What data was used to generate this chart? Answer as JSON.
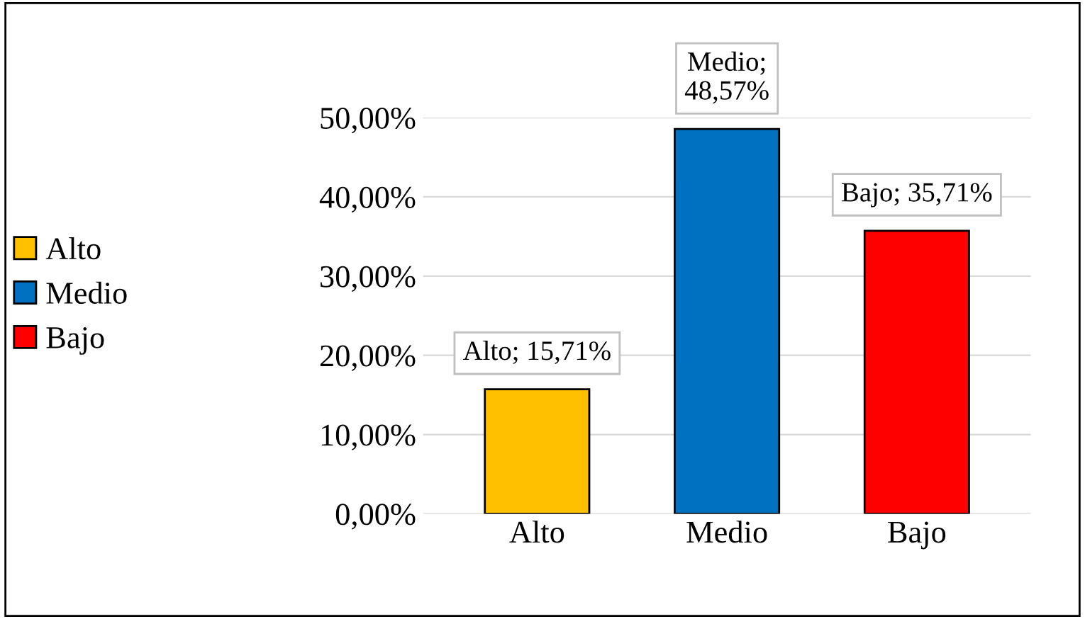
{
  "chart_data": {
    "type": "bar",
    "categories": [
      "Alto",
      "Medio",
      "Bajo"
    ],
    "series": [
      {
        "name": "Alto",
        "color": "#ffc000",
        "values": [
          15.71,
          null,
          null
        ]
      },
      {
        "name": "Medio",
        "color": "#0070c0",
        "values": [
          null,
          48.57,
          null
        ]
      },
      {
        "name": "Bajo",
        "color": "#ff0000",
        "values": [
          null,
          null,
          35.71
        ]
      }
    ],
    "value_labels": [
      "Alto; 15,71%",
      "Medio;\n48,57%",
      "Bajo; 35,71%"
    ],
    "ylim": [
      0,
      50
    ],
    "yticks": [
      {
        "value": 0,
        "label": "0,00%"
      },
      {
        "value": 10,
        "label": "10,00%"
      },
      {
        "value": 20,
        "label": "20,00%"
      },
      {
        "value": 30,
        "label": "30,00%"
      },
      {
        "value": 40,
        "label": "40,00%"
      },
      {
        "value": 50,
        "label": "50,00%"
      }
    ],
    "grid": "y",
    "legend": "left"
  }
}
